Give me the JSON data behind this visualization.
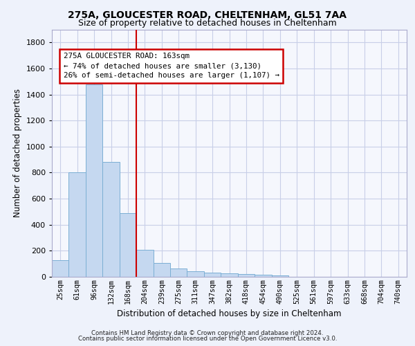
{
  "title1": "275A, GLOUCESTER ROAD, CHELTENHAM, GL51 7AA",
  "title2": "Size of property relative to detached houses in Cheltenham",
  "xlabel": "Distribution of detached houses by size in Cheltenham",
  "ylabel": "Number of detached properties",
  "footnote1": "Contains HM Land Registry data © Crown copyright and database right 2024.",
  "footnote2": "Contains public sector information licensed under the Open Government Licence v3.0.",
  "categories": [
    "25sqm",
    "61sqm",
    "96sqm",
    "132sqm",
    "168sqm",
    "204sqm",
    "239sqm",
    "275sqm",
    "311sqm",
    "347sqm",
    "382sqm",
    "418sqm",
    "454sqm",
    "490sqm",
    "525sqm",
    "561sqm",
    "597sqm",
    "633sqm",
    "668sqm",
    "704sqm",
    "740sqm"
  ],
  "values": [
    125,
    800,
    1480,
    880,
    490,
    205,
    108,
    65,
    42,
    33,
    25,
    20,
    15,
    8,
    0,
    0,
    0,
    0,
    0,
    0,
    0
  ],
  "bar_color": "#c5d8f0",
  "bar_edge_color": "#7bafd4",
  "vline_index": 4,
  "vline_color": "#cc0000",
  "annotation_text": "275A GLOUCESTER ROAD: 163sqm\n← 74% of detached houses are smaller (3,130)\n26% of semi-detached houses are larger (1,107) →",
  "ylim": [
    0,
    1900
  ],
  "yticks": [
    0,
    200,
    400,
    600,
    800,
    1000,
    1200,
    1400,
    1600,
    1800
  ],
  "bg_color": "#eef2fb",
  "plot_bg_color": "#f5f7fd",
  "grid_color": "#c8cfe8",
  "title1_fontsize": 10,
  "title2_fontsize": 9
}
